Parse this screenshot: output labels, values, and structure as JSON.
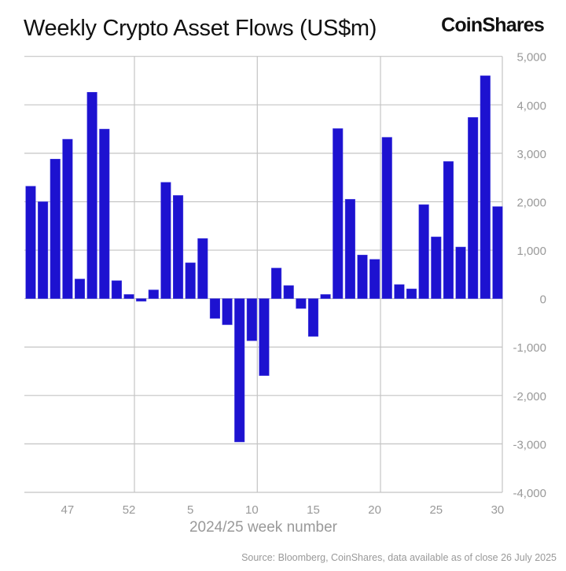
{
  "header": {
    "title": "Weekly Crypto Asset Flows (US$m)",
    "logo": "CoinShares"
  },
  "footer": {
    "source": "Source: Bloomberg, CoinShares, data available as of close 26 July 2025"
  },
  "chart_data": {
    "type": "bar",
    "title": "Weekly Crypto Asset Flows (US$m)",
    "xlabel": "2024/25 week number",
    "ylabel": "",
    "ylim": [
      -4000,
      5000
    ],
    "yticks": [
      5000,
      4000,
      3000,
      2000,
      1000,
      0,
      -1000,
      -2000,
      -3000,
      -4000
    ],
    "ytick_labels": [
      "5,000",
      "4,000",
      "3,000",
      "2,000",
      "1,000",
      "0",
      "-1,000",
      "-2,000",
      "-3,000",
      "-4,000"
    ],
    "xtick_labels": [
      "47",
      "52",
      "5",
      "10",
      "15",
      "20",
      "25",
      "30"
    ],
    "grid": true,
    "bar_color": "#1d12d0",
    "categories": [
      "44",
      "45",
      "46",
      "47",
      "48",
      "49",
      "50",
      "51",
      "52",
      "1",
      "2",
      "3",
      "4",
      "5",
      "6",
      "7",
      "8",
      "9",
      "10",
      "11",
      "12",
      "13",
      "14",
      "15",
      "16",
      "17",
      "18",
      "19",
      "20",
      "21",
      "22",
      "23",
      "24",
      "25",
      "26",
      "27",
      "28",
      "29",
      "30"
    ],
    "values": [
      2320,
      2000,
      2880,
      3290,
      405,
      4260,
      3500,
      370,
      85,
      -55,
      180,
      2400,
      2130,
      740,
      1240,
      -410,
      -540,
      -2960,
      -870,
      -1590,
      630,
      270,
      -205,
      -780,
      85,
      3510,
      2050,
      900,
      810,
      3330,
      290,
      200,
      1940,
      1275,
      2830,
      1065,
      3740,
      4600,
      1900
    ]
  }
}
